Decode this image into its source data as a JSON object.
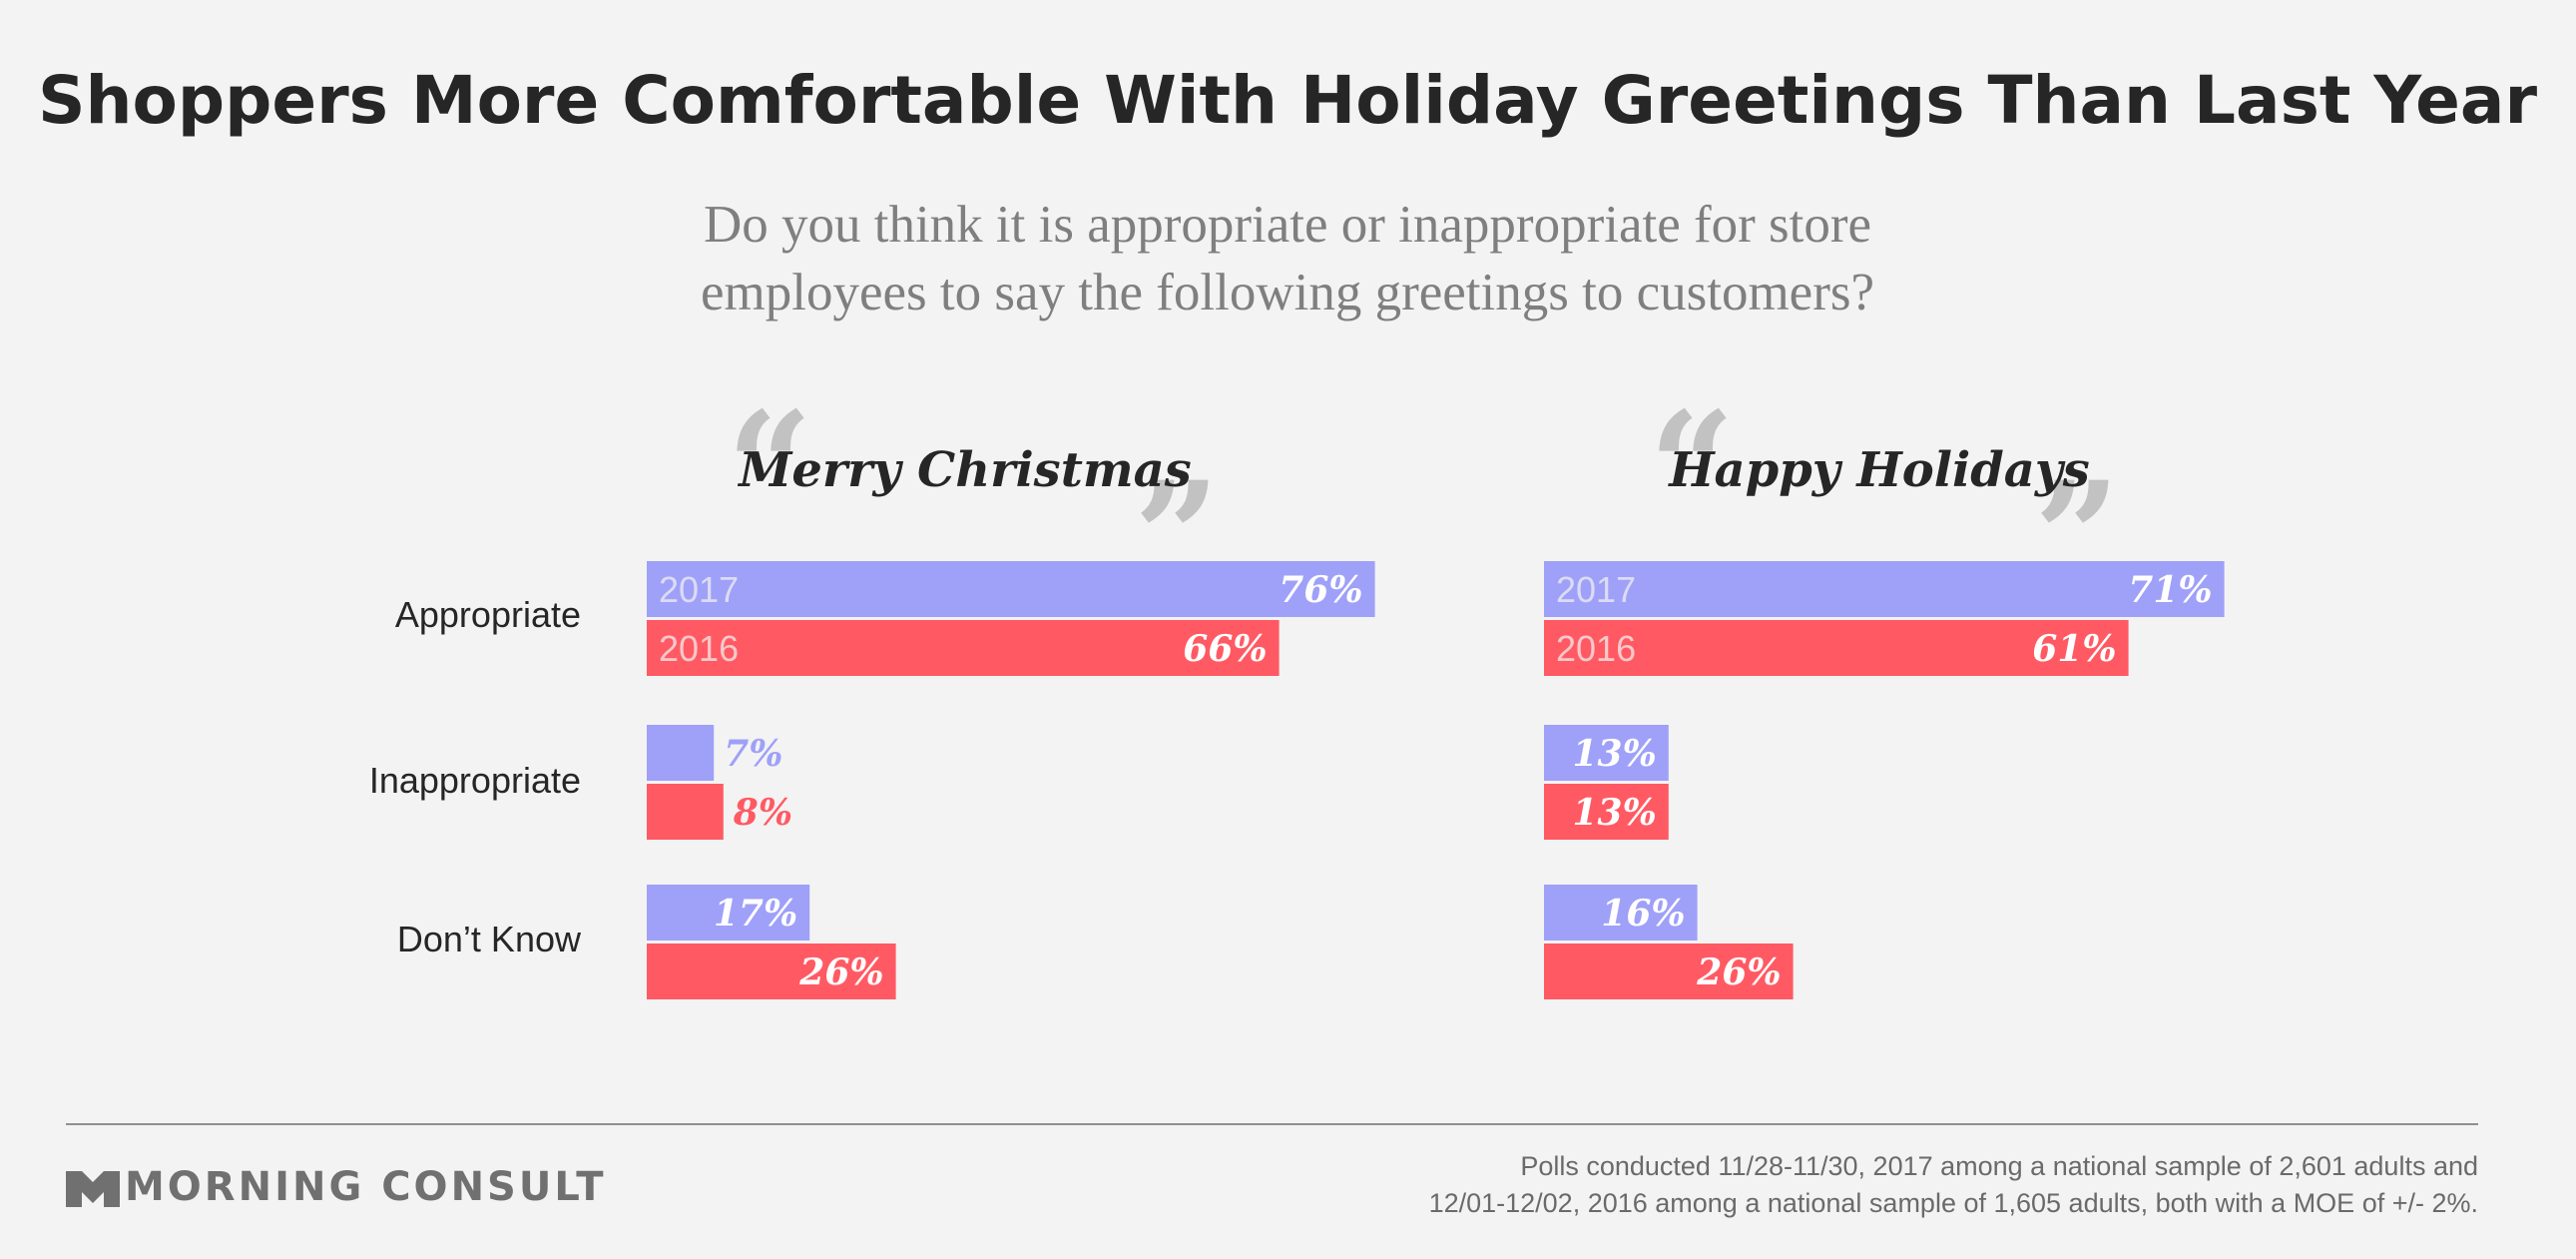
{
  "header": {
    "title": "Shoppers More Comfortable With Holiday Greetings Than Last Year",
    "subtitle_line1": "Do you think it is appropriate or inappropriate for store",
    "subtitle_line2": "employees to say the following greetings to customers?"
  },
  "colors": {
    "series_2017": "#9fa0f8",
    "series_2016": "#ff5a63",
    "title": "#262626",
    "subtitle": "#7f7f7f",
    "quote_marks": "#c2c2c2",
    "background": "#f3f3f3"
  },
  "chart_data": [
    {
      "type": "bar",
      "orientation": "horizontal",
      "title": "Merry Christmas",
      "categories": [
        "Appropriate",
        "Inappropriate",
        "Don’t Know"
      ],
      "series": [
        {
          "name": "2017",
          "values": [
            76,
            7,
            17
          ]
        },
        {
          "name": "2016",
          "values": [
            66,
            8,
            26
          ]
        }
      ],
      "value_labels": [
        [
          "76%",
          "7%",
          "17%"
        ],
        [
          "66%",
          "8%",
          "26%"
        ]
      ],
      "grid": false
    },
    {
      "type": "bar",
      "orientation": "horizontal",
      "title": "Happy Holidays",
      "categories": [
        "Appropriate",
        "Inappropriate",
        "Don’t Know"
      ],
      "series": [
        {
          "name": "2017",
          "values": [
            71,
            13,
            16
          ]
        },
        {
          "name": "2016",
          "values": [
            61,
            13,
            26
          ]
        }
      ],
      "value_labels": [
        [
          "71%",
          "13%",
          "16%"
        ],
        [
          "61%",
          "13%",
          "26%"
        ]
      ],
      "grid": false
    }
  ],
  "footer": {
    "brand": "MORNING CONSULT",
    "brand_icon": "morning-consult-logo-icon",
    "note_line1": "Polls conducted 11/28-11/30, 2017 among a national sample of 2,601 adults and",
    "note_line2": "12/01-12/02, 2016 among a national sample of 1,605 adults, both with a MOE of +/- 2%."
  }
}
